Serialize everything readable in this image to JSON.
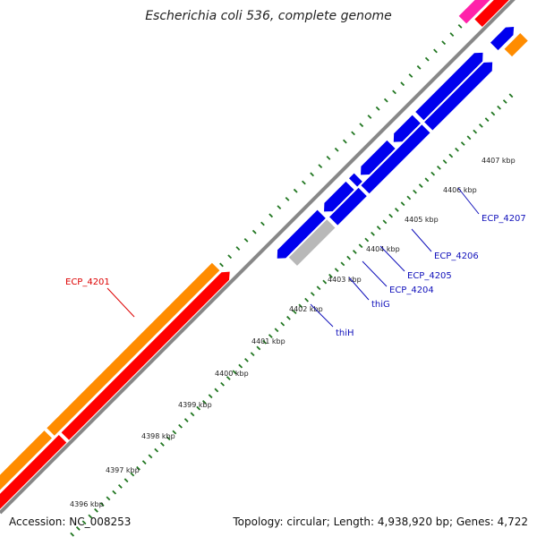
{
  "title": "Escherichia coli 536, complete genome",
  "footer": {
    "accession": "Accession: NC_008253",
    "summary": "Topology: circular; Length: 4,938,920 bp; Genes: 4,722"
  },
  "ticks": [
    "4396 kbp",
    "4397 kbp",
    "4398 kbp",
    "4399 kbp",
    "4400 kbp",
    "4401 kbp",
    "4402 kbp",
    "4403 kbp",
    "4404 kbp",
    "4405 kbp",
    "4406 kbp",
    "4407 kbp"
  ],
  "genes": [
    {
      "name": "ECP_4201",
      "color": "#dd0000"
    },
    {
      "name": "thiH",
      "color": "#1111bb"
    },
    {
      "name": "thiG",
      "color": "#1111bb"
    },
    {
      "name": "ECP_4204",
      "color": "#1111bb"
    },
    {
      "name": "ECP_4205",
      "color": "#1111bb"
    },
    {
      "name": "ECP_4206",
      "color": "#1111bb"
    },
    {
      "name": "ECP_4207",
      "color": "#1111bb"
    }
  ],
  "colors": {
    "cds_blue": "#0000ee",
    "orange": "#ff8c00",
    "red": "#ff0000",
    "pink": "#ff22aa",
    "gray": "#b8b8b8",
    "backbone": "#888888",
    "ticks_green": "#227722"
  }
}
